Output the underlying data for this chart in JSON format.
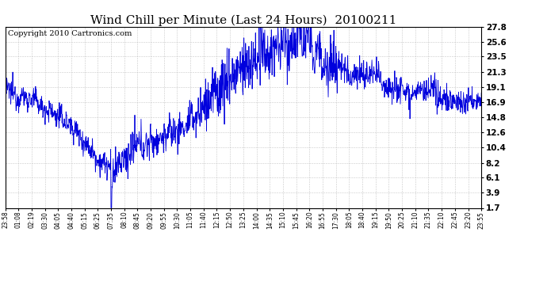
{
  "title": "Wind Chill per Minute (Last 24 Hours)  20100211",
  "copyright_text": "Copyright 2010 Cartronics.com",
  "line_color": "#0000dd",
  "background_color": "#ffffff",
  "plot_bg_color": "#ffffff",
  "grid_color": "#bbbbbb",
  "ytick_labels": [
    "1.7",
    "3.9",
    "6.1",
    "8.2",
    "10.4",
    "12.6",
    "14.8",
    "16.9",
    "19.1",
    "21.3",
    "23.5",
    "25.6",
    "27.8"
  ],
  "ytick_values": [
    1.7,
    3.9,
    6.1,
    8.2,
    10.4,
    12.6,
    14.8,
    16.9,
    19.1,
    21.3,
    23.5,
    25.6,
    27.8
  ],
  "xtick_labels": [
    "23:58",
    "01:08",
    "02:19",
    "03:30",
    "04:05",
    "04:40",
    "05:15",
    "06:25",
    "07:35",
    "08:10",
    "08:45",
    "09:20",
    "09:55",
    "10:30",
    "11:05",
    "11:40",
    "12:15",
    "12:50",
    "13:25",
    "14:00",
    "14:35",
    "15:10",
    "15:45",
    "16:20",
    "16:55",
    "17:30",
    "18:05",
    "18:40",
    "19:15",
    "19:50",
    "20:25",
    "21:10",
    "21:35",
    "22:10",
    "22:45",
    "23:20",
    "23:55"
  ],
  "ylim": [
    1.7,
    27.8
  ],
  "title_fontsize": 11,
  "copyright_fontsize": 7,
  "xtick_fontsize": 5.5,
  "ytick_fontsize": 7.5
}
